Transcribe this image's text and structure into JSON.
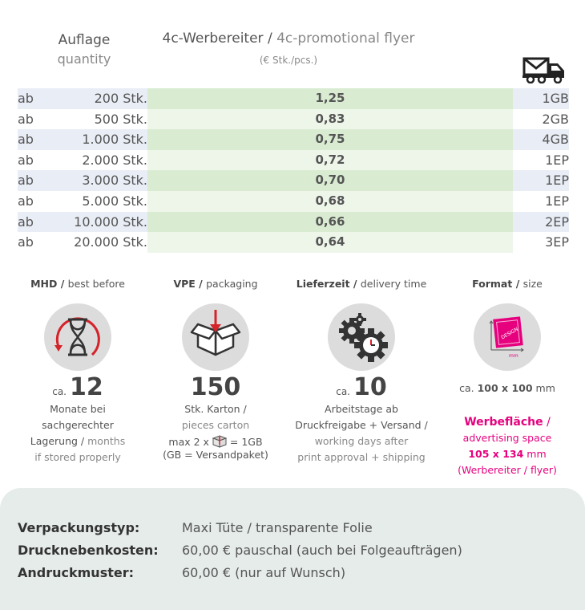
{
  "header": {
    "qty_de": "Auflage",
    "qty_en": "quantity",
    "product_de": "4c-Werbereiter",
    "product_sep": " / ",
    "product_en": "4c-promotional flyer",
    "unit": "(€ Stk./pcs.)",
    "shipping_icon": "delivery-truck-envelope-icon"
  },
  "prices": [
    {
      "ab": "ab",
      "qty": "200 Stk.",
      "price": "1,25",
      "ship": "1GB"
    },
    {
      "ab": "ab",
      "qty": "500 Stk.",
      "price": "0,83",
      "ship": "2GB"
    },
    {
      "ab": "ab",
      "qty": "1.000 Stk.",
      "price": "0,75",
      "ship": "4GB"
    },
    {
      "ab": "ab",
      "qty": "2.000 Stk.",
      "price": "0,72",
      "ship": "1EP"
    },
    {
      "ab": "ab",
      "qty": "3.000 Stk.",
      "price": "0,70",
      "ship": "1EP"
    },
    {
      "ab": "ab",
      "qty": "5.000 Stk.",
      "price": "0,68",
      "ship": "1EP"
    },
    {
      "ab": "ab",
      "qty": "10.000 Stk.",
      "price": "0,66",
      "ship": "2EP"
    },
    {
      "ab": "ab",
      "qty": "20.000 Stk.",
      "price": "0,64",
      "ship": "3EP"
    }
  ],
  "info": {
    "mhd": {
      "title_de": "MHD",
      "title_en": "best before",
      "ca": "ca.",
      "value": "12",
      "line1": "Monate bei",
      "line2": "sachgerechter",
      "line3_de": "Lagerung",
      "line3_en": "months",
      "line4": "if stored properly",
      "icon": "hourglass-icon"
    },
    "vpe": {
      "title_de": "VPE",
      "title_en": "packaging",
      "value": "150",
      "line1": "Stk. Karton /",
      "line2": "pieces carton",
      "line3a": "max 2 x",
      "line3b": "= 1GB",
      "line4": "(GB = Versandpaket)",
      "icon": "box-icon"
    },
    "delivery": {
      "title_de": "Lieferzeit",
      "title_en": "delivery time",
      "ca": "ca.",
      "value": "10",
      "line1": "Arbeitstage ab",
      "line2": "Druckfreigabe + Versand /",
      "line3": "working days after",
      "line4": "print approval + shipping",
      "icon": "gears-clock-icon"
    },
    "format": {
      "title_de": "Format",
      "title_en": "size",
      "ca": "ca.",
      "size": "100 x 100",
      "unit": "mm",
      "adv_de": "Werbefläche",
      "adv_en": "advertising space",
      "adv_size": "105 x 134",
      "adv_unit": "mm",
      "adv_note": "(Werbereiter / flyer)",
      "icon_label": "mm",
      "icon_text": "DESIGN",
      "icon": "format-size-icon"
    }
  },
  "bottom": [
    {
      "label": "Verpackungstyp:",
      "value": "Maxi Tüte / transparente Folie"
    },
    {
      "label": "Drucknebenkosten:",
      "value": "60,00 € pauschal (auch bei Folgeaufträgen)"
    },
    {
      "label": "Andruckmuster:",
      "value": "60,00 € (nur auf Wunsch)"
    }
  ],
  "colors": {
    "accent": "#e6007e",
    "row_blue": "#e9edf6",
    "row_green": "#d9ecd2",
    "panel": "#e6ecea"
  }
}
